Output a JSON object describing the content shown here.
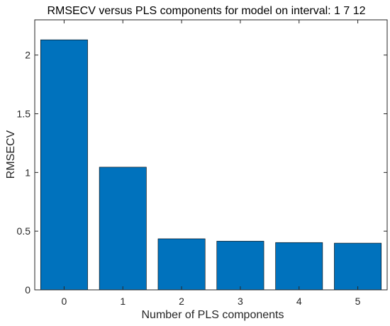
{
  "chart_data": {
    "type": "bar",
    "title": "RMSECV versus PLS components for model on interval:  1   7  12",
    "xlabel": "Number of PLS components",
    "ylabel": "RMSECV",
    "categories": [
      "0",
      "1",
      "2",
      "3",
      "4",
      "5"
    ],
    "values": [
      2.13,
      1.045,
      0.435,
      0.415,
      0.403,
      0.398
    ],
    "ylim": [
      0,
      2.3
    ],
    "yticks": [
      0,
      0.5,
      1,
      1.5,
      2
    ],
    "ytick_labels": [
      "0",
      "0.5",
      "1",
      "1.5",
      "2"
    ],
    "bar_color": "#0072BD",
    "bar_edge_color": "#000000",
    "grid": false,
    "box": true
  }
}
